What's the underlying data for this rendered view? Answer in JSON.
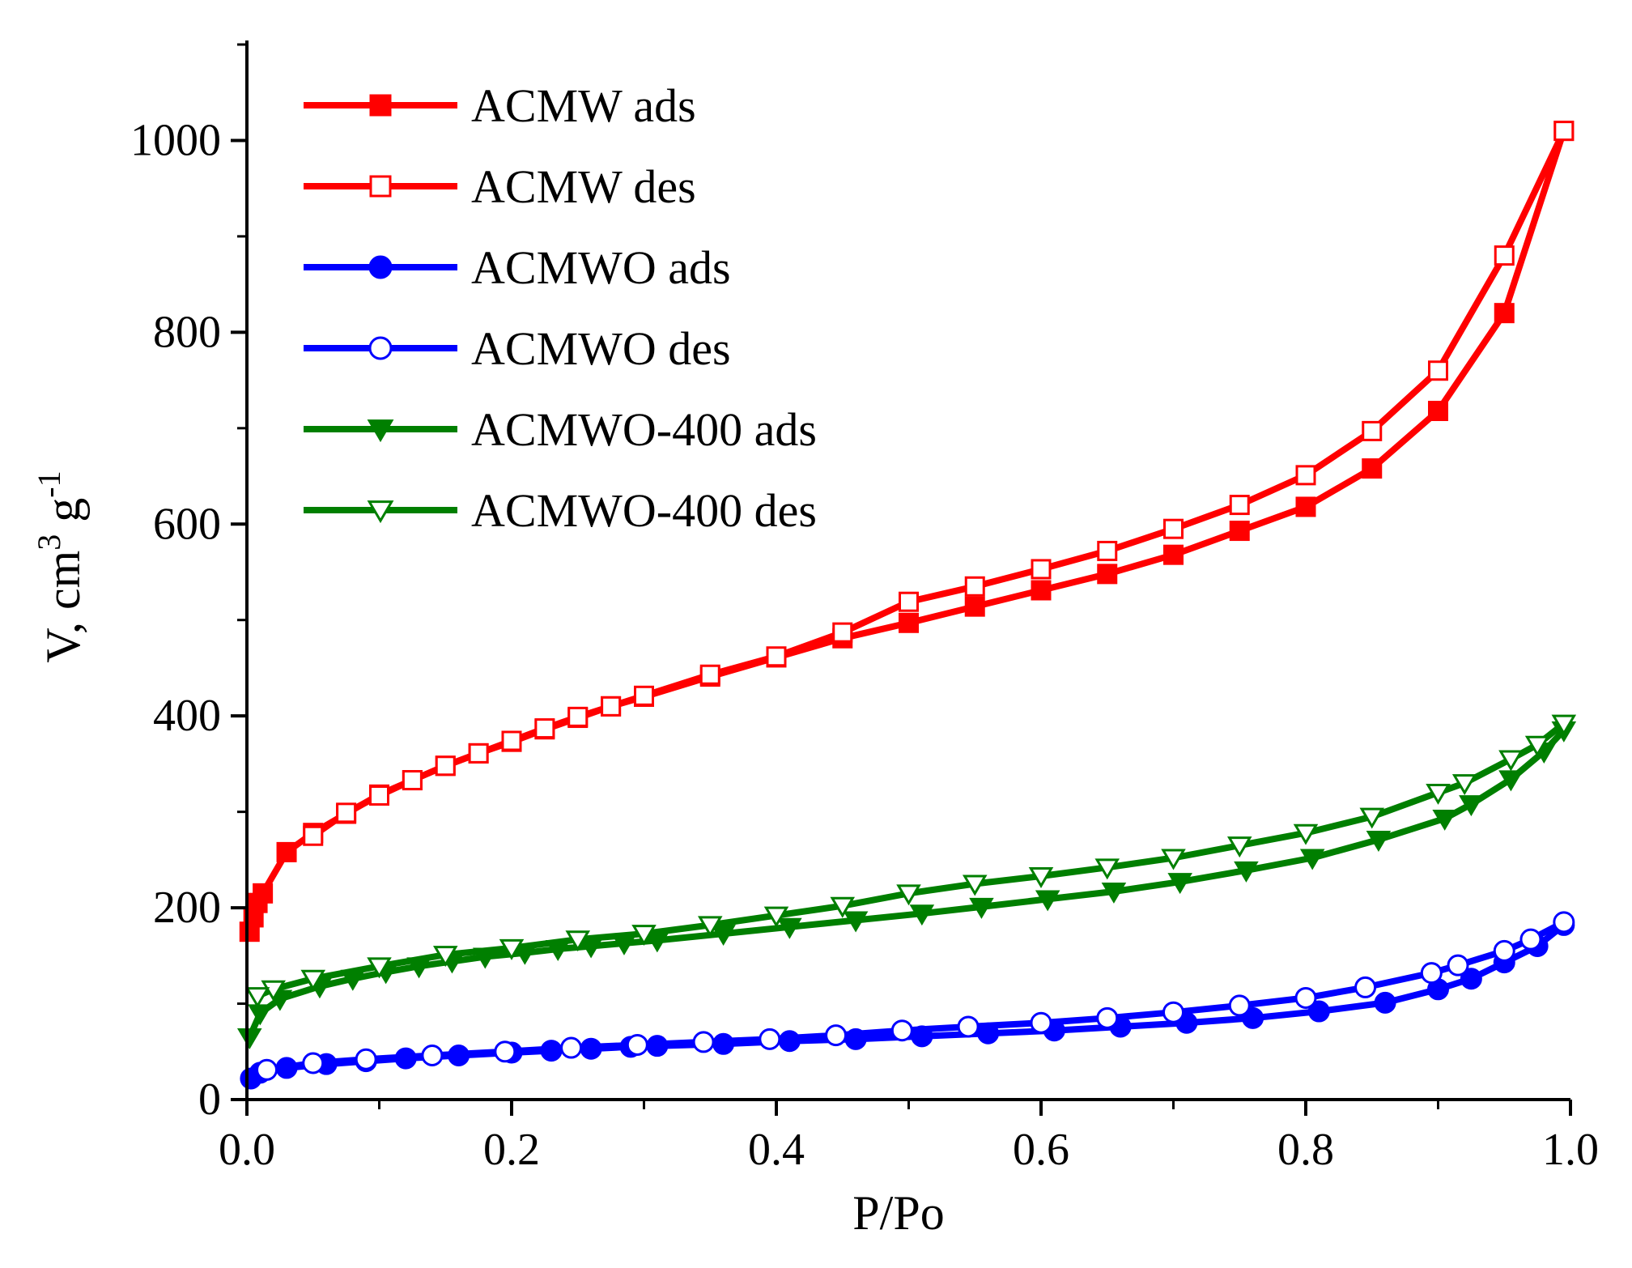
{
  "chart_data": {
    "type": "line",
    "title": "",
    "xlabel": "P/Po",
    "ylabel": "V, cm",
    "ylabel_sup": "3",
    "ylabel_mid": " g",
    "ylabel_sup2": "-1",
    "xlim": [
      0.0,
      1.0
    ],
    "ylim": [
      0,
      1100
    ],
    "x_ticks": [
      "0.0",
      "0.2",
      "0.4",
      "0.6",
      "0.8",
      "1.0"
    ],
    "y_ticks": [
      "0",
      "200",
      "400",
      "600",
      "800",
      "1000"
    ],
    "legend_position": "top-left",
    "series": [
      {
        "name": "ACMW ads",
        "color": "#ff0000",
        "marker": "square",
        "filled": true,
        "points": [
          [
            0.002,
            175
          ],
          [
            0.005,
            190
          ],
          [
            0.008,
            205
          ],
          [
            0.012,
            215
          ],
          [
            0.03,
            258
          ],
          [
            0.05,
            278
          ],
          [
            0.075,
            298
          ],
          [
            0.1,
            318
          ],
          [
            0.125,
            333
          ],
          [
            0.15,
            348
          ],
          [
            0.175,
            361
          ],
          [
            0.2,
            373
          ],
          [
            0.225,
            386
          ],
          [
            0.25,
            398
          ],
          [
            0.275,
            410
          ],
          [
            0.3,
            420
          ],
          [
            0.35,
            441
          ],
          [
            0.4,
            461
          ],
          [
            0.45,
            481
          ],
          [
            0.5,
            497
          ],
          [
            0.55,
            514
          ],
          [
            0.6,
            531
          ],
          [
            0.65,
            548
          ],
          [
            0.7,
            568
          ],
          [
            0.75,
            593
          ],
          [
            0.8,
            618
          ],
          [
            0.85,
            658
          ],
          [
            0.9,
            718
          ],
          [
            0.95,
            820
          ],
          [
            0.995,
            1010
          ]
        ]
      },
      {
        "name": "ACMW des",
        "color": "#ff0000",
        "marker": "square",
        "filled": false,
        "points": [
          [
            0.995,
            1010
          ],
          [
            0.95,
            880
          ],
          [
            0.9,
            760
          ],
          [
            0.85,
            697
          ],
          [
            0.8,
            651
          ],
          [
            0.75,
            620
          ],
          [
            0.7,
            595
          ],
          [
            0.65,
            572
          ],
          [
            0.6,
            553
          ],
          [
            0.55,
            535
          ],
          [
            0.5,
            519
          ],
          [
            0.45,
            487
          ],
          [
            0.4,
            462
          ],
          [
            0.35,
            443
          ],
          [
            0.3,
            421
          ],
          [
            0.275,
            410
          ],
          [
            0.25,
            399
          ],
          [
            0.225,
            387
          ],
          [
            0.2,
            374
          ],
          [
            0.175,
            361
          ],
          [
            0.15,
            348
          ],
          [
            0.125,
            333
          ],
          [
            0.1,
            317
          ],
          [
            0.075,
            299
          ],
          [
            0.05,
            275
          ]
        ]
      },
      {
        "name": "ACMWO ads",
        "color": "#0000ff",
        "marker": "circle",
        "filled": true,
        "points": [
          [
            0.003,
            22
          ],
          [
            0.01,
            28
          ],
          [
            0.03,
            33
          ],
          [
            0.06,
            37
          ],
          [
            0.09,
            40
          ],
          [
            0.12,
            43
          ],
          [
            0.16,
            46
          ],
          [
            0.2,
            49
          ],
          [
            0.23,
            51
          ],
          [
            0.26,
            53
          ],
          [
            0.29,
            55
          ],
          [
            0.31,
            56
          ],
          [
            0.36,
            58
          ],
          [
            0.41,
            61
          ],
          [
            0.46,
            63
          ],
          [
            0.51,
            66
          ],
          [
            0.56,
            69
          ],
          [
            0.61,
            72
          ],
          [
            0.66,
            76
          ],
          [
            0.71,
            80
          ],
          [
            0.76,
            85
          ],
          [
            0.81,
            92
          ],
          [
            0.86,
            101
          ],
          [
            0.9,
            115
          ],
          [
            0.925,
            126
          ],
          [
            0.95,
            143
          ],
          [
            0.975,
            160
          ],
          [
            0.995,
            182
          ]
        ]
      },
      {
        "name": "ACMWO des",
        "color": "#0000ff",
        "marker": "circle",
        "filled": false,
        "points": [
          [
            0.995,
            185
          ],
          [
            0.97,
            167
          ],
          [
            0.95,
            155
          ],
          [
            0.915,
            140
          ],
          [
            0.895,
            132
          ],
          [
            0.845,
            117
          ],
          [
            0.8,
            106
          ],
          [
            0.75,
            98
          ],
          [
            0.7,
            91
          ],
          [
            0.65,
            85
          ],
          [
            0.6,
            80
          ],
          [
            0.545,
            76
          ],
          [
            0.495,
            72
          ],
          [
            0.445,
            67
          ],
          [
            0.395,
            63
          ],
          [
            0.345,
            60
          ],
          [
            0.295,
            57
          ],
          [
            0.245,
            54
          ],
          [
            0.195,
            50
          ],
          [
            0.14,
            46
          ],
          [
            0.09,
            42
          ],
          [
            0.05,
            38
          ],
          [
            0.015,
            31
          ]
        ]
      },
      {
        "name": "ACMWO-400 ads",
        "color": "#007f00",
        "marker": "triangle-down",
        "filled": true,
        "points": [
          [
            0.002,
            65
          ],
          [
            0.01,
            90
          ],
          [
            0.025,
            105
          ],
          [
            0.055,
            118
          ],
          [
            0.08,
            126
          ],
          [
            0.105,
            133
          ],
          [
            0.13,
            139
          ],
          [
            0.155,
            144
          ],
          [
            0.18,
            149
          ],
          [
            0.21,
            153
          ],
          [
            0.235,
            157
          ],
          [
            0.26,
            160
          ],
          [
            0.285,
            163
          ],
          [
            0.31,
            166
          ],
          [
            0.36,
            173
          ],
          [
            0.41,
            180
          ],
          [
            0.46,
            187
          ],
          [
            0.51,
            194
          ],
          [
            0.555,
            201
          ],
          [
            0.605,
            209
          ],
          [
            0.655,
            217
          ],
          [
            0.705,
            227
          ],
          [
            0.755,
            239
          ],
          [
            0.805,
            252
          ],
          [
            0.855,
            271
          ],
          [
            0.905,
            293
          ],
          [
            0.925,
            308
          ],
          [
            0.955,
            334
          ],
          [
            0.98,
            363
          ],
          [
            0.995,
            385
          ]
        ]
      },
      {
        "name": "ACMWO-400 des",
        "color": "#007f00",
        "marker": "triangle-down",
        "filled": false,
        "points": [
          [
            0.995,
            392
          ],
          [
            0.975,
            370
          ],
          [
            0.955,
            355
          ],
          [
            0.92,
            330
          ],
          [
            0.9,
            320
          ],
          [
            0.85,
            295
          ],
          [
            0.8,
            278
          ],
          [
            0.75,
            265
          ],
          [
            0.7,
            252
          ],
          [
            0.65,
            242
          ],
          [
            0.6,
            233
          ],
          [
            0.55,
            225
          ],
          [
            0.5,
            215
          ],
          [
            0.45,
            202
          ],
          [
            0.4,
            192
          ],
          [
            0.35,
            182
          ],
          [
            0.3,
            173
          ],
          [
            0.25,
            167
          ],
          [
            0.2,
            158
          ],
          [
            0.15,
            151
          ],
          [
            0.1,
            139
          ],
          [
            0.05,
            126
          ],
          [
            0.02,
            115
          ],
          [
            0.008,
            108
          ]
        ]
      }
    ]
  }
}
